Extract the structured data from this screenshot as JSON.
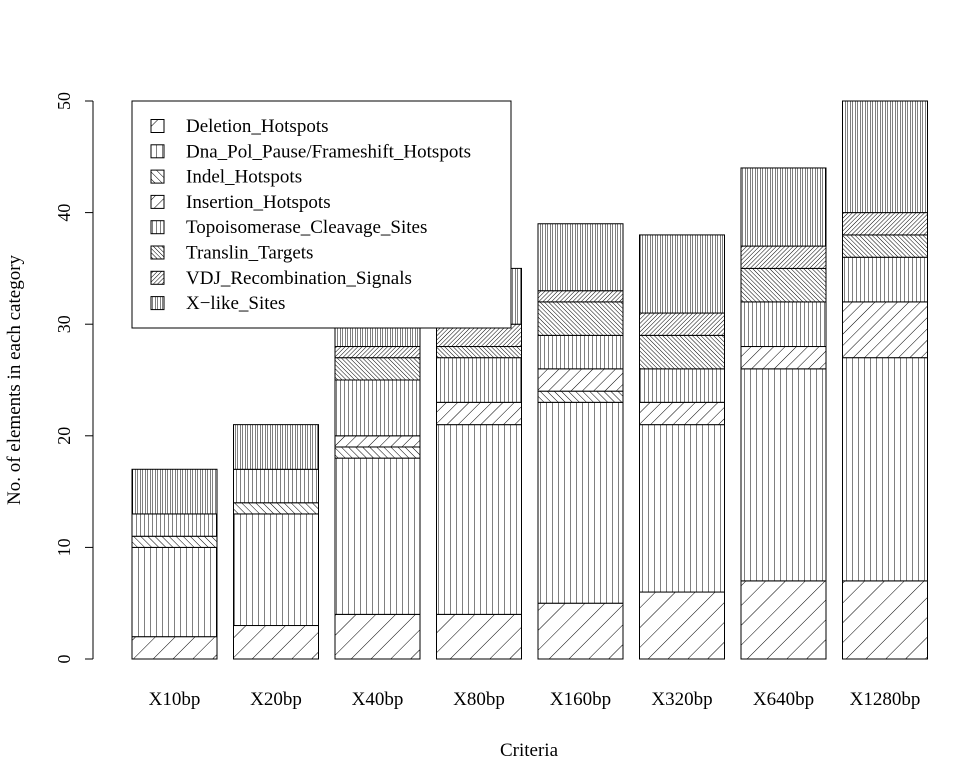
{
  "chart_data": {
    "type": "bar",
    "stacked": true,
    "title": "",
    "xlabel": "Criteria",
    "ylabel": "No. of elements in each category",
    "ylim": [
      0,
      50
    ],
    "yticks": [
      0,
      10,
      20,
      30,
      40,
      50
    ],
    "categories": [
      "X10bp",
      "X20bp",
      "X40bp",
      "X80bp",
      "X160bp",
      "X320bp",
      "X640bp",
      "X1280bp"
    ],
    "legend_position": "top-left",
    "series": [
      {
        "name": "Deletion_Hotspots",
        "pattern": "diag-45-sparse",
        "values": [
          2,
          3,
          4,
          4,
          5,
          6,
          7,
          7
        ]
      },
      {
        "name": "Dna_Pol_Pause/Frameshift_Hotspots",
        "pattern": "vertical-sparse",
        "values": [
          8,
          10,
          14,
          17,
          18,
          15,
          19,
          20
        ]
      },
      {
        "name": "Indel_Hotspots",
        "pattern": "diag-135",
        "values": [
          1,
          1,
          1,
          0,
          1,
          0,
          0,
          0
        ]
      },
      {
        "name": "Insertion_Hotspots",
        "pattern": "diag-45",
        "values": [
          0,
          0,
          1,
          2,
          2,
          2,
          2,
          5
        ]
      },
      {
        "name": "Topoisomerase_Cleavage_Sites",
        "pattern": "vertical",
        "values": [
          2,
          3,
          5,
          4,
          3,
          3,
          4,
          4
        ]
      },
      {
        "name": "Translin_Targets",
        "pattern": "diag-135-dense",
        "values": [
          0,
          0,
          2,
          1,
          3,
          3,
          3,
          2
        ]
      },
      {
        "name": "VDJ_Recombination_Signals",
        "pattern": "diag-45-dense",
        "values": [
          0,
          0,
          1,
          2,
          1,
          2,
          2,
          2
        ]
      },
      {
        "name": "X−like_Sites",
        "pattern": "vertical-dense",
        "values": [
          4,
          4,
          4,
          5,
          6,
          7,
          7,
          10
        ]
      }
    ]
  }
}
